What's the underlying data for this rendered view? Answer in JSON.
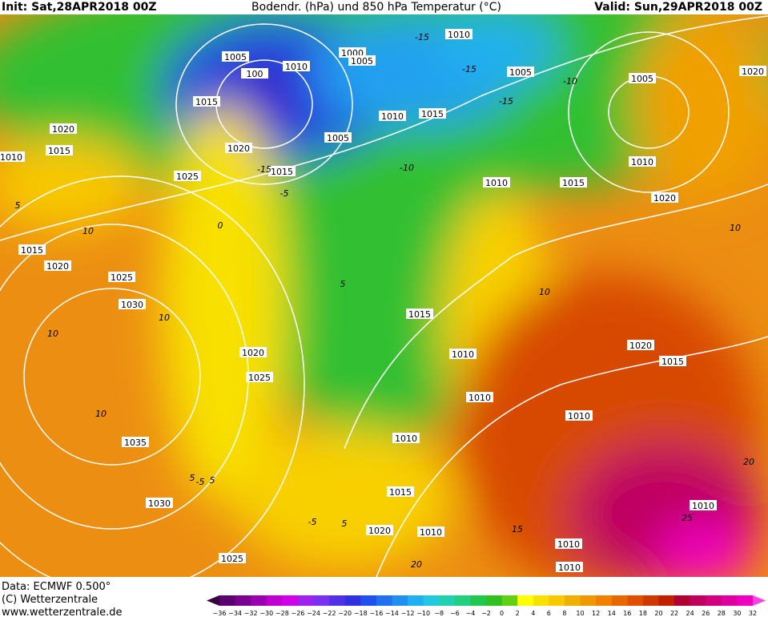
{
  "header": {
    "init": "Init: Sat,28APR2018 00Z",
    "title": "Bodendr. (hPa) und 850 hPa Temperatur (°C)",
    "valid": "Valid: Sun,29APR2018 00Z"
  },
  "isobar_labels": [
    "1005",
    "100",
    "1010",
    "1000",
    "1005",
    "1010",
    "1005",
    "1015",
    "1020",
    "1010",
    "1015",
    "1005",
    "1020",
    "1015",
    "1010",
    "1020",
    "1005",
    "1025",
    "1015",
    "1010",
    "1015",
    "1010",
    "1020",
    "1015",
    "1020",
    "1025",
    "1030",
    "1015",
    "1020",
    "1010",
    "1020",
    "1015",
    "1025",
    "1010",
    "1010",
    "1010",
    "1035",
    "1015",
    "1030",
    "1010",
    "1020",
    "1010",
    "1010",
    "1025",
    "1010"
  ],
  "isotherm_labels": [
    "-15",
    "-15",
    "-15",
    "-10",
    "-15",
    "-10",
    "-5",
    "10",
    "5",
    "0",
    "5",
    "10",
    "-5",
    "5",
    "10",
    "10",
    "5",
    "10",
    "10",
    "5",
    "15",
    "20",
    "25",
    "20",
    "-5"
  ],
  "footer": {
    "data": "Data: ECMWF  0.500°",
    "copyright": "(C) Wetterzentrale",
    "url": "www.wetterzentrale.de"
  },
  "colorbar": {
    "labels": [
      "−36",
      "−34",
      "−32",
      "−30",
      "−28",
      "−26",
      "−24",
      "−22",
      "−20",
      "−18",
      "−16",
      "−14",
      "−12",
      "−10",
      "−8",
      "−6",
      "−4",
      "−2",
      "0",
      "2",
      "4",
      "6",
      "8",
      "10",
      "12",
      "14",
      "16",
      "18",
      "20",
      "22",
      "24",
      "26",
      "28",
      "30",
      "32"
    ],
    "colors": [
      "#3c0040",
      "#5a0070",
      "#7a0090",
      "#9a00b0",
      "#c000d0",
      "#d000e8",
      "#a020f0",
      "#7a30f0",
      "#5030e8",
      "#3030e0",
      "#2050f0",
      "#2070f0",
      "#2090f0",
      "#20b0f0",
      "#20c8e0",
      "#20d0b0",
      "#20d080",
      "#20c850",
      "#30c020",
      "#60d010",
      "#ffff00",
      "#f8e000",
      "#f8c800",
      "#f0b000",
      "#f09800",
      "#f08000",
      "#e86800",
      "#e05000",
      "#d03800",
      "#c02000",
      "#b00030",
      "#c00060",
      "#d00080",
      "#e000a0",
      "#f000c0",
      "#ff40e0"
    ]
  }
}
